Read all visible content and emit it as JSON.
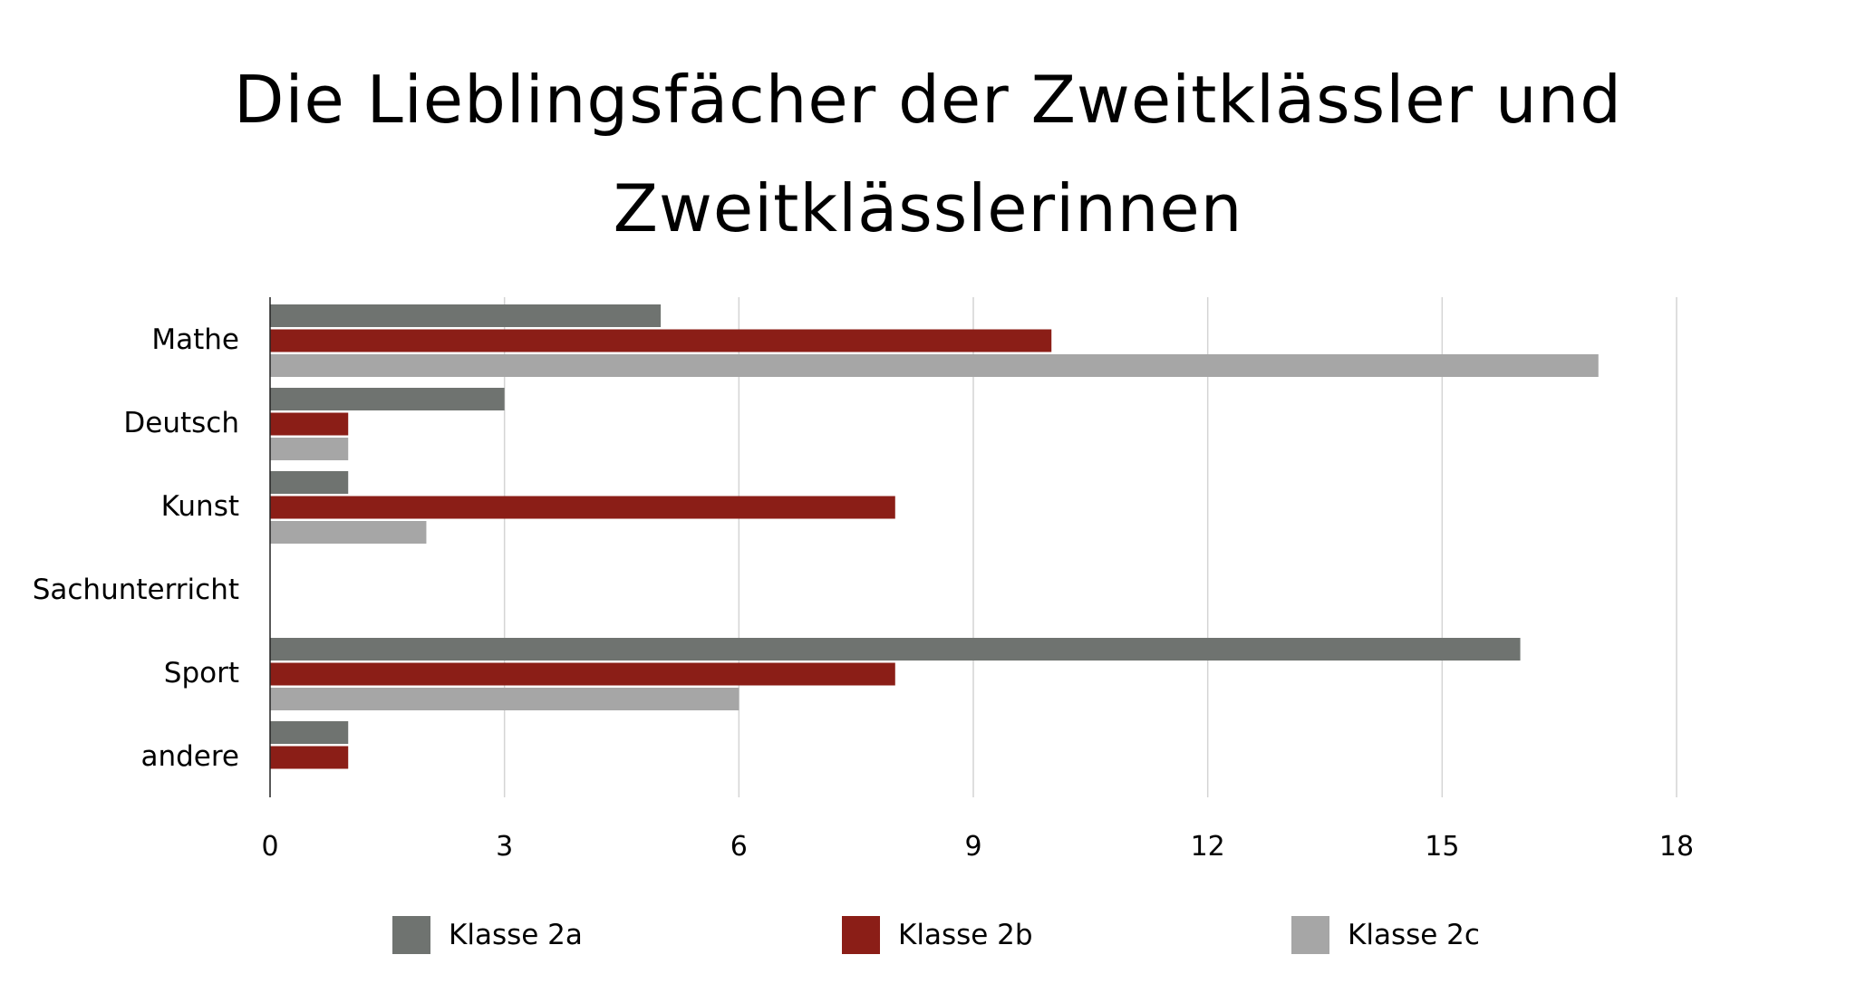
{
  "chart_data": {
    "type": "bar",
    "orientation": "horizontal",
    "title": "Die Lieblingsfächer der Zweitklässler und Zweitklässlerinnen",
    "title_lines": [
      "Die Lieblingsfächer der Zweitklässler und",
      "Zweitklässlerinnen"
    ],
    "categories": [
      "Mathe",
      "Deutsch",
      "Kunst",
      "Sachunterricht",
      "Sport",
      "andere"
    ],
    "series": [
      {
        "name": "Klasse 2a",
        "color": "#6f7370",
        "values": [
          5,
          3,
          1,
          0,
          16,
          1
        ]
      },
      {
        "name": "Klasse 2b",
        "color": "#8b1e17",
        "values": [
          10,
          1,
          8,
          0,
          8,
          1
        ]
      },
      {
        "name": "Klasse 2c",
        "color": "#a6a6a6",
        "values": [
          17,
          1,
          2,
          0,
          6,
          0
        ]
      }
    ],
    "xlim": [
      0,
      18
    ],
    "xticks": [
      "0",
      "3",
      "6",
      "9",
      "12",
      "15",
      "18"
    ],
    "xlabel": "",
    "ylabel": "",
    "grid": "vertical",
    "legend_position": "bottom"
  }
}
